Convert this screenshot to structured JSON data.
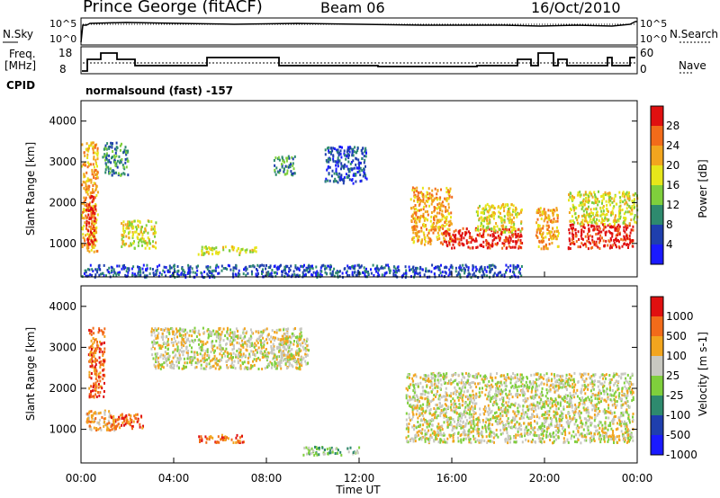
{
  "header": {
    "site": "Prince George (fitACF)",
    "beam": "Beam 06",
    "date": "16/Oct/2010"
  },
  "top_panels": {
    "nsky_label": "N.Sky",
    "nsearch_label": "N.Search",
    "noise_ticks_left": [
      "10^5",
      "10^0"
    ],
    "noise_ticks_right": [
      "10^5",
      "10^0"
    ],
    "freq_label_1": "Freq.",
    "freq_label_2": "[MHz]",
    "freq_ticks": [
      "18",
      "8"
    ],
    "nave_label": "Nave",
    "nave_ticks": [
      "60",
      "0"
    ],
    "cpid_label": "CPID",
    "cpid_value": "normalsound (fast) -157"
  },
  "chart_data": [
    {
      "type": "heatmap",
      "name": "power",
      "ylabel": "Slant Range [km]",
      "ylim": [
        180,
        4500
      ],
      "yticks": [
        "1000",
        "2000",
        "3000",
        "4000"
      ],
      "xlim_hours": [
        0,
        24
      ],
      "colorbar": {
        "label": "Power [dB]",
        "ticks": [
          "28",
          "24",
          "20",
          "16",
          "12",
          "8",
          "4"
        ],
        "colors": [
          "#1a1aff",
          "#1f3fae",
          "#2e8a6e",
          "#7fcf3c",
          "#e6e61a",
          "#f2a51e",
          "#f26b1a",
          "#e01010"
        ]
      },
      "scatter_regions": [
        {
          "t0": 0.0,
          "t1": 0.7,
          "r0": 800,
          "r1": 3500,
          "level": 5
        },
        {
          "t0": 0.2,
          "t1": 0.6,
          "r0": 1000,
          "r1": 2200,
          "level": 7
        },
        {
          "t0": 1.7,
          "t1": 3.2,
          "r0": 900,
          "r1": 1600,
          "level": 4
        },
        {
          "t0": 0.9,
          "t1": 2.0,
          "r0": 2700,
          "r1": 3500,
          "level": 2
        },
        {
          "t0": 5.0,
          "t1": 7.6,
          "r0": 750,
          "r1": 950,
          "level": 4
        },
        {
          "t0": 8.3,
          "t1": 9.2,
          "r0": 2700,
          "r1": 3200,
          "level": 2
        },
        {
          "t0": 10.5,
          "t1": 12.3,
          "r0": 2500,
          "r1": 3400,
          "level": 1
        },
        {
          "t0": 14.2,
          "t1": 16.0,
          "r0": 1000,
          "r1": 2400,
          "level": 5
        },
        {
          "t0": 15.6,
          "t1": 19.0,
          "r0": 900,
          "r1": 1400,
          "level": 7
        },
        {
          "t0": 17.0,
          "t1": 19.0,
          "r0": 1300,
          "r1": 2000,
          "level": 4
        },
        {
          "t0": 19.6,
          "t1": 20.6,
          "r0": 900,
          "r1": 1900,
          "level": 5
        },
        {
          "t0": 21.0,
          "t1": 23.8,
          "r0": 900,
          "r1": 1500,
          "level": 7
        },
        {
          "t0": 21.0,
          "t1": 24.0,
          "r0": 1500,
          "r1": 2300,
          "level": 4
        },
        {
          "t0": 0.0,
          "t1": 19.0,
          "r0": 200,
          "r1": 500,
          "level": 1
        }
      ]
    },
    {
      "type": "heatmap",
      "name": "velocity",
      "ylabel": "Slant Range [km]",
      "ylim": [
        180,
        4500
      ],
      "yticks": [
        "1000",
        "2000",
        "3000",
        "4000"
      ],
      "xlim_hours": [
        0,
        24
      ],
      "xticks": [
        "00:00",
        "04:00",
        "08:00",
        "12:00",
        "16:00",
        "20:00",
        "00:00"
      ],
      "xlabel": "Time UT",
      "colorbar": {
        "label": "Velocity [m s-1]",
        "ticks": [
          "1000",
          "500",
          "100",
          "25",
          "-25",
          "-100",
          "-500",
          "-1000"
        ],
        "colors": [
          "#1a1aff",
          "#1f3fae",
          "#2e8a6e",
          "#7fcf3c",
          "#c8c8c0",
          "#f2a51e",
          "#f26b1a",
          "#e01010"
        ]
      },
      "scatter_regions": [
        {
          "t0": 0.2,
          "t1": 1.5,
          "r0": 1000,
          "r1": 1500,
          "level": 5
        },
        {
          "t0": 1.2,
          "t1": 2.7,
          "r0": 1050,
          "r1": 1400,
          "level": 6
        },
        {
          "t0": 0.3,
          "t1": 1.0,
          "r0": 1800,
          "r1": 3500,
          "level": 6
        },
        {
          "t0": 5.0,
          "t1": 7.0,
          "r0": 700,
          "r1": 900,
          "level": 6
        },
        {
          "t0": 3.0,
          "t1": 9.5,
          "r0": 2500,
          "r1": 3500,
          "level": 4
        },
        {
          "t0": 9.5,
          "t1": 12.0,
          "r0": 400,
          "r1": 600,
          "level": 3
        },
        {
          "t0": 14.0,
          "t1": 23.8,
          "r0": 700,
          "r1": 2400,
          "level": 4
        },
        {
          "t0": 8.5,
          "t1": 9.8,
          "r0": 2600,
          "r1": 3300,
          "level": 4
        }
      ]
    }
  ]
}
